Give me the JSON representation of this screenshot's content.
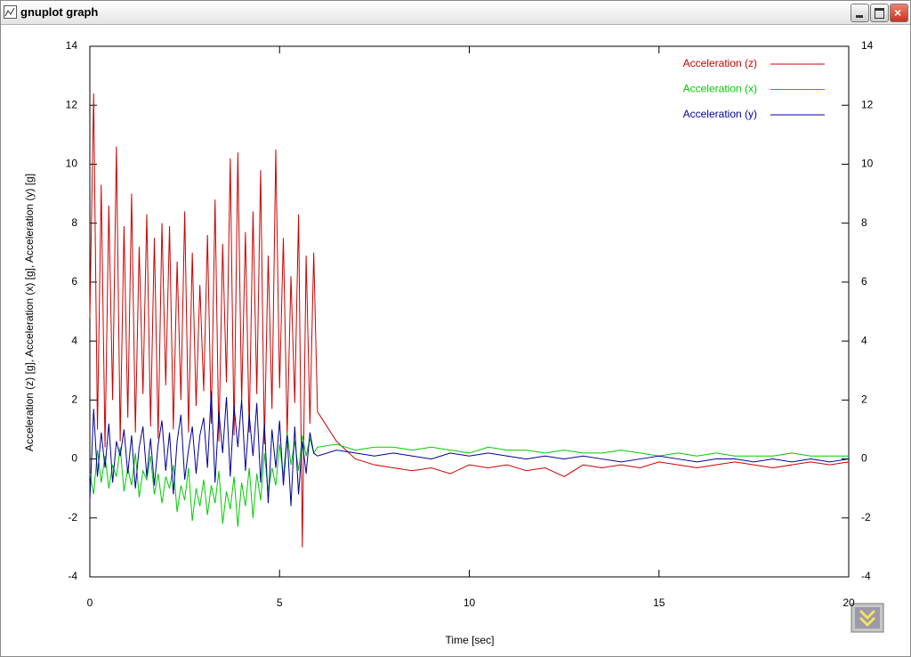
{
  "window_title": "gnuplot graph",
  "chart_data": {
    "type": "line",
    "xlabel": "Time [sec]",
    "ylabel": "Acceleration (z) [g], Acceleration (x) [g], Acceleration (y) [g]",
    "x": [
      0,
      0.1,
      0.2,
      0.3,
      0.4,
      0.5,
      0.6,
      0.7,
      0.8,
      0.9,
      1,
      1.1,
      1.2,
      1.3,
      1.4,
      1.5,
      1.6,
      1.7,
      1.8,
      1.9,
      2,
      2.1,
      2.2,
      2.3,
      2.4,
      2.5,
      2.6,
      2.7,
      2.8,
      2.9,
      3,
      3.1,
      3.2,
      3.3,
      3.4,
      3.5,
      3.6,
      3.7,
      3.8,
      3.9,
      4,
      4.1,
      4.2,
      4.3,
      4.4,
      4.5,
      4.6,
      4.7,
      4.8,
      4.9,
      5,
      5.1,
      5.2,
      5.3,
      5.4,
      5.5,
      5.6,
      5.7,
      5.8,
      5.9,
      6,
      6.5,
      7,
      7.5,
      8,
      8.5,
      9,
      9.5,
      10,
      10.5,
      11,
      11.5,
      12,
      12.5,
      13,
      13.5,
      14,
      14.5,
      15,
      15.5,
      16,
      16.5,
      17,
      17.5,
      18,
      18.5,
      19,
      19.5,
      20
    ],
    "series": [
      {
        "name": "Acceleration (z)",
        "color": "#cc0000",
        "values": [
          4.8,
          12.4,
          1.0,
          9.3,
          0.4,
          8.6,
          2.0,
          10.6,
          0.6,
          7.9,
          1.4,
          9.0,
          0.9,
          7.2,
          2.2,
          8.3,
          1.1,
          7.5,
          0.7,
          8.0,
          2.5,
          7.9,
          1.0,
          6.7,
          2.0,
          8.4,
          0.9,
          7.0,
          1.8,
          5.9,
          2.3,
          7.6,
          1.2,
          8.8,
          0.6,
          7.3,
          2.6,
          10.2,
          0.8,
          10.4,
          1.9,
          7.7,
          0.9,
          8.4,
          2.2,
          9.8,
          0.5,
          6.9,
          1.7,
          10.5,
          2.4,
          7.5,
          0.8,
          6.2,
          1.9,
          8.3,
          -3.0,
          6.9,
          1.2,
          7.0,
          1.6,
          0.6,
          0.0,
          -0.2,
          -0.3,
          -0.4,
          -0.3,
          -0.5,
          -0.2,
          -0.3,
          -0.2,
          -0.4,
          -0.3,
          -0.6,
          -0.2,
          -0.3,
          -0.2,
          -0.3,
          -0.1,
          -0.2,
          -0.3,
          -0.2,
          -0.1,
          -0.2,
          -0.3,
          -0.2,
          -0.1,
          -0.2,
          -0.1
        ]
      },
      {
        "name": "Acceleration (x)",
        "color": "#00cc00",
        "values": [
          -0.5,
          -1.2,
          0.3,
          -0.8,
          0.1,
          -1.0,
          -0.2,
          -0.6,
          0.4,
          -1.1,
          -0.3,
          -0.9,
          0.2,
          -1.3,
          -0.4,
          -0.7,
          0.1,
          -1.2,
          -0.5,
          -1.5,
          -0.6,
          -1.0,
          -0.2,
          -1.8,
          -0.9,
          -1.4,
          -0.3,
          -2.1,
          -1.0,
          -1.6,
          -0.7,
          -1.9,
          -0.9,
          -1.5,
          -0.4,
          -2.2,
          -1.1,
          -1.7,
          -0.6,
          -2.3,
          -0.8,
          -1.6,
          -0.3,
          -2.0,
          -0.5,
          -1.4,
          0.2,
          -1.1,
          -0.3,
          -0.9,
          0.5,
          -0.6,
          0.9,
          -0.2,
          0.6,
          -0.4,
          0.8,
          0.1,
          0.7,
          0.2,
          0.4,
          0.5,
          0.3,
          0.4,
          0.4,
          0.3,
          0.4,
          0.3,
          0.2,
          0.4,
          0.3,
          0.3,
          0.2,
          0.3,
          0.2,
          0.2,
          0.3,
          0.2,
          0.1,
          0.2,
          0.1,
          0.2,
          0.1,
          0.1,
          0.1,
          0.2,
          0.1,
          0.1,
          0.1
        ]
      },
      {
        "name": "Acceleration (y)",
        "color": "#000099",
        "values": [
          -1.4,
          1.7,
          -0.6,
          0.9,
          -0.3,
          1.2,
          -0.8,
          0.6,
          0.1,
          1.0,
          -0.5,
          0.8,
          -1.0,
          0.4,
          1.1,
          -0.6,
          0.7,
          -0.9,
          0.5,
          1.3,
          -0.4,
          0.9,
          -1.2,
          0.6,
          1.5,
          -0.7,
          0.3,
          1.1,
          -0.5,
          0.8,
          1.4,
          -0.3,
          2.3,
          -0.8,
          1.6,
          0.2,
          2.1,
          -0.6,
          1.8,
          0.4,
          2.0,
          -0.4,
          1.5,
          0.1,
          1.9,
          -0.8,
          1.2,
          -1.5,
          1.0,
          -0.3,
          1.3,
          -0.9,
          0.8,
          -1.6,
          1.1,
          -1.2,
          0.6,
          -0.5,
          0.9,
          0.2,
          0.1,
          0.3,
          0.2,
          0.1,
          0.2,
          0.1,
          0.0,
          0.2,
          0.1,
          0.2,
          0.1,
          0.0,
          0.1,
          0.0,
          0.1,
          0.0,
          -0.1,
          0.0,
          0.1,
          0.0,
          -0.1,
          0.0,
          0.0,
          -0.1,
          0.0,
          -0.1,
          0.0,
          -0.1,
          0.0
        ]
      }
    ],
    "xlim": [
      0,
      20
    ],
    "xticks": [
      0,
      5,
      10,
      15,
      20
    ],
    "ylim": [
      -4,
      14
    ],
    "yticks": [
      -4,
      -2,
      0,
      2,
      4,
      6,
      8,
      10,
      12,
      14
    ],
    "y2lim": [
      -4,
      14
    ],
    "y2ticks": [
      -4,
      -2,
      0,
      2,
      4,
      6,
      8,
      10,
      12,
      14
    ],
    "legend": "top-right"
  }
}
